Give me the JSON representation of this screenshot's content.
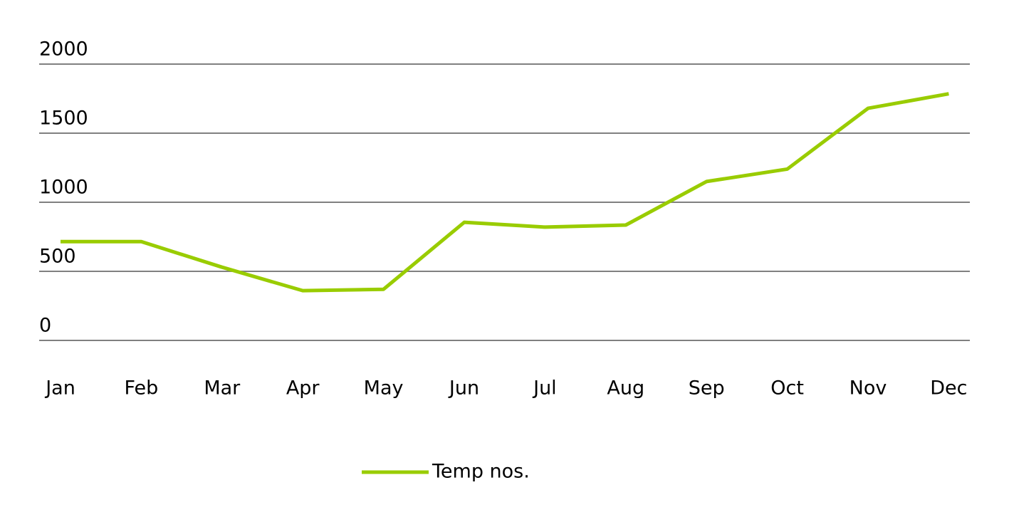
{
  "chart_data": {
    "type": "line",
    "categories": [
      "Jan",
      "Feb",
      "Mar",
      "Apr",
      "May",
      "Jun",
      "Jul",
      "Aug",
      "Sep",
      "Oct",
      "Nov",
      "Dec"
    ],
    "series": [
      {
        "name": "Temp nos.",
        "color": "#99cc00",
        "values": [
          715,
          715,
          530,
          360,
          370,
          855,
          820,
          835,
          1150,
          1240,
          1680,
          1785
        ]
      }
    ],
    "ylim": [
      0,
      2000
    ],
    "yticks": [
      0,
      500,
      1000,
      1500,
      2000
    ],
    "grid": true,
    "legend": "bottom"
  }
}
